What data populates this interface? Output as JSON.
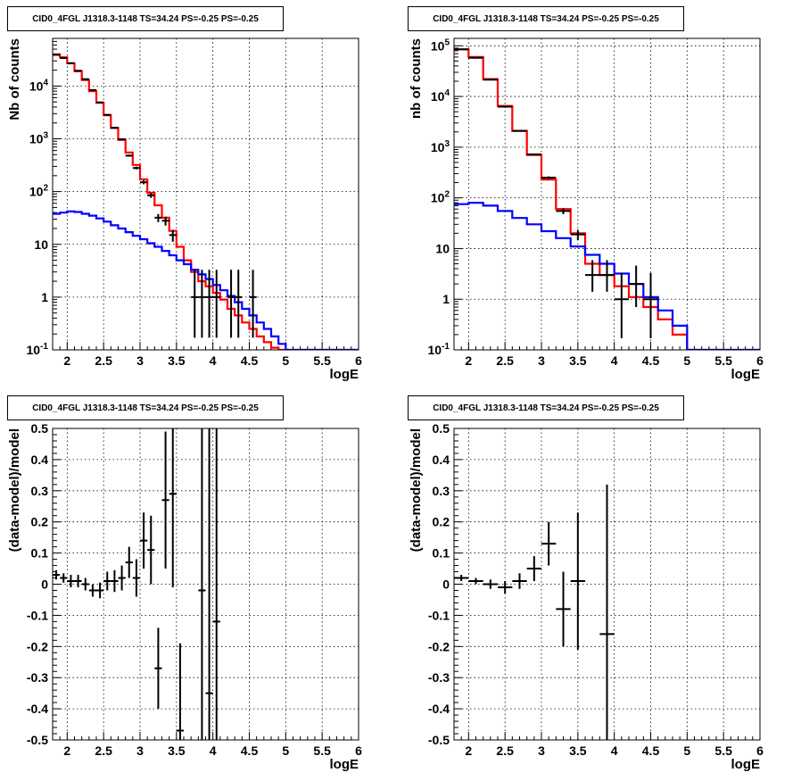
{
  "colors": {
    "data": "#000000",
    "total_model": "#ff0000",
    "component_model": "#0000ff",
    "grid": "#000000"
  },
  "chart_data": [
    {
      "type": "line",
      "title": "CID0_4FGL J1318.3-1148 TS=34.24 PS=-0.25 PS=-0.25",
      "xlabel": "logE",
      "ylabel": "Nb of counts",
      "xlim": [
        1.8,
        6
      ],
      "ylim": [
        0.1,
        80000
      ],
      "yscale": "log",
      "grid": true,
      "xticks": [
        "2",
        "2.5",
        "3",
        "3.5",
        "4",
        "4.5",
        "5",
        "5.5",
        "6"
      ],
      "yticks": [
        "10^{-1}",
        "1",
        "10",
        "10^{2}",
        "10^{3}",
        "10^{4}"
      ],
      "series": [
        {
          "kind": "step",
          "role": "total_model",
          "edges": [
            1.8,
            1.9,
            2.0,
            2.1,
            2.2,
            2.3,
            2.4,
            2.5,
            2.6,
            2.7,
            2.8,
            2.9,
            3.0,
            3.1,
            3.2,
            3.3,
            3.4,
            3.5,
            3.6,
            3.7,
            3.8,
            3.9,
            4.0,
            4.1,
            4.2,
            4.3,
            4.4,
            4.5,
            4.6,
            4.7,
            4.8,
            4.9,
            5.0,
            6.0
          ],
          "values": [
            40000,
            35000,
            27000,
            19000,
            13000,
            8000,
            4800,
            2800,
            1600,
            950,
            550,
            320,
            170,
            95,
            55,
            32,
            18,
            9,
            5,
            3,
            2,
            1.6,
            1.2,
            0.9,
            0.6,
            0.45,
            0.33,
            0.25,
            0.18,
            0.14,
            0.11,
            0.1,
            0.1
          ]
        },
        {
          "kind": "step",
          "role": "component_model",
          "edges": [
            1.8,
            1.9,
            2.0,
            2.1,
            2.2,
            2.3,
            2.4,
            2.5,
            2.6,
            2.7,
            2.8,
            2.9,
            3.0,
            3.1,
            3.2,
            3.3,
            3.4,
            3.5,
            3.6,
            3.7,
            3.8,
            3.9,
            4.0,
            4.1,
            4.2,
            4.3,
            4.4,
            4.5,
            4.6,
            4.7,
            4.8,
            4.9,
            5.0,
            6.0
          ],
          "values": [
            38,
            40,
            42,
            41,
            38,
            35,
            31,
            27,
            23,
            20,
            17,
            14.5,
            12.5,
            10.5,
            9,
            7.5,
            6.2,
            5,
            4.2,
            3.3,
            2.7,
            2.2,
            1.7,
            1.35,
            1.05,
            0.8,
            0.6,
            0.45,
            0.33,
            0.25,
            0.18,
            0.13,
            0.1
          ]
        },
        {
          "kind": "points",
          "role": "data",
          "x": [
            1.85,
            1.95,
            2.05,
            2.15,
            2.25,
            2.35,
            2.45,
            2.55,
            2.65,
            2.75,
            2.85,
            2.95,
            3.05,
            3.15,
            3.25,
            3.35,
            3.45,
            3.75,
            3.85,
            3.95,
            4.05,
            4.25,
            4.35,
            4.55
          ],
          "y": [
            39000,
            34000,
            27000,
            19500,
            13500,
            8400,
            4900,
            2850,
            1620,
            980,
            480,
            280,
            150,
            85,
            32,
            28,
            15,
            1,
            1,
            1,
            1,
            1,
            1,
            1
          ],
          "xerr": 0.05,
          "yerr_low": [
            200,
            180,
            160,
            140,
            120,
            90,
            70,
            53,
            40,
            31,
            22,
            17,
            12,
            9,
            5.6,
            5.3,
            3.8,
            0.83,
            0.83,
            0.83,
            0.83,
            0.83,
            0.83,
            0.83
          ],
          "yerr_high": [
            200,
            180,
            160,
            140,
            120,
            90,
            70,
            53,
            40,
            31,
            22,
            17,
            12,
            9,
            5.6,
            5.3,
            3.8,
            2.3,
            2.3,
            2.3,
            2.3,
            2.3,
            2.3,
            2.3
          ]
        }
      ]
    },
    {
      "type": "line",
      "title": "CID0_4FGL J1318.3-1148 TS=34.24 PS=-0.25 PS=-0.25",
      "xlabel": "logE",
      "ylabel": "nb of counts",
      "xlim": [
        1.8,
        6
      ],
      "ylim": [
        0.1,
        140000
      ],
      "yscale": "log",
      "grid": true,
      "xticks": [
        "2",
        "2.5",
        "3",
        "3.5",
        "4",
        "4.5",
        "5",
        "5.5",
        "6"
      ],
      "yticks": [
        "10^{-1}",
        "1",
        "10",
        "10^{2}",
        "10^{3}",
        "10^{4}",
        "10^{5}"
      ],
      "series": [
        {
          "kind": "step",
          "role": "total_model",
          "edges": [
            1.8,
            2.0,
            2.2,
            2.4,
            2.6,
            2.8,
            3.0,
            3.2,
            3.4,
            3.6,
            3.8,
            4.0,
            4.2,
            4.4,
            4.6,
            4.8,
            5.0,
            6.0
          ],
          "values": [
            85000,
            60000,
            22000,
            6500,
            2100,
            700,
            230,
            60,
            20,
            5,
            3,
            1.8,
            1.1,
            0.7,
            0.4,
            0.2,
            0.1
          ]
        },
        {
          "kind": "step",
          "role": "component_model",
          "edges": [
            1.8,
            2.0,
            2.2,
            2.4,
            2.6,
            2.8,
            3.0,
            3.2,
            3.4,
            3.6,
            3.8,
            4.0,
            4.2,
            4.4,
            4.6,
            4.8,
            5.0,
            6.0
          ],
          "values": [
            75,
            80,
            70,
            55,
            40,
            30,
            22,
            16,
            11,
            7.5,
            5,
            3.2,
            2,
            1.1,
            0.6,
            0.3,
            0.1
          ]
        },
        {
          "kind": "points",
          "role": "data",
          "x": [
            1.9,
            2.1,
            2.3,
            2.5,
            2.7,
            2.9,
            3.1,
            3.3,
            3.5,
            3.7,
            3.9,
            4.1,
            4.3,
            4.5
          ],
          "y": [
            85000,
            58000,
            21500,
            6300,
            2100,
            720,
            250,
            55,
            19,
            3,
            3,
            1,
            2,
            1
          ],
          "xerr": 0.1,
          "yerr_low": [
            290,
            240,
            150,
            80,
            46,
            27,
            16,
            7.4,
            4.4,
            1.6,
            1.6,
            0.83,
            1.3,
            0.83
          ],
          "yerr_high": [
            290,
            240,
            150,
            80,
            46,
            27,
            16,
            7.4,
            4.4,
            2.9,
            2.9,
            2.3,
            2.6,
            2.3
          ]
        }
      ]
    },
    {
      "type": "scatter",
      "title": "CID0_4FGL J1318.3-1148 TS=34.24 PS=-0.25 PS=-0.25",
      "xlabel": "logE",
      "ylabel": "(data-model)/model",
      "xlim": [
        1.8,
        6
      ],
      "ylim": [
        -0.5,
        0.5
      ],
      "grid": true,
      "xticks": [
        "2",
        "2.5",
        "3",
        "3.5",
        "4",
        "4.5",
        "5",
        "5.5",
        "6"
      ],
      "yticks": [
        "-0.5",
        "-0.4",
        "-0.3",
        "-0.2",
        "-0.1",
        "0",
        "0.1",
        "0.2",
        "0.3",
        "0.4",
        "0.5"
      ],
      "series": [
        {
          "kind": "points",
          "role": "data",
          "x": [
            1.85,
            1.95,
            2.05,
            2.15,
            2.25,
            2.35,
            2.45,
            2.55,
            2.65,
            2.75,
            2.85,
            2.95,
            3.05,
            3.15,
            3.25,
            3.35,
            3.45,
            3.55,
            3.85,
            3.95,
            4.05
          ],
          "y": [
            0.03,
            0.02,
            0.01,
            0.01,
            0.0,
            -0.02,
            -0.02,
            0.01,
            0.01,
            0.02,
            0.07,
            0.02,
            0.14,
            0.11,
            -0.27,
            0.27,
            0.29,
            -0.47,
            -0.02,
            -0.35,
            -0.12
          ],
          "xerr": 0.05,
          "yerr": [
            0.015,
            0.015,
            0.02,
            0.02,
            0.02,
            0.02,
            0.025,
            0.03,
            0.035,
            0.04,
            0.05,
            0.06,
            0.09,
            0.11,
            0.13,
            0.22,
            0.3,
            0.28,
            0.9,
            0.9,
            1.0
          ]
        }
      ]
    },
    {
      "type": "scatter",
      "title": "CID0_4FGL J1318.3-1148 TS=34.24 PS=-0.25 PS=-0.25",
      "xlabel": "logE",
      "ylabel": "(data-model)/model",
      "xlim": [
        1.8,
        6
      ],
      "ylim": [
        -0.5,
        0.5
      ],
      "grid": true,
      "xticks": [
        "2",
        "2.5",
        "3",
        "3.5",
        "4",
        "4.5",
        "5",
        "5.5",
        "6"
      ],
      "yticks": [
        "-0.5",
        "-0.4",
        "-0.3",
        "-0.2",
        "-0.1",
        "0",
        "0.1",
        "0.2",
        "0.3",
        "0.4",
        "0.5"
      ],
      "series": [
        {
          "kind": "points",
          "role": "data",
          "x": [
            1.9,
            2.1,
            2.3,
            2.5,
            2.7,
            2.9,
            3.1,
            3.3,
            3.5,
            3.9
          ],
          "y": [
            0.02,
            0.01,
            0.0,
            -0.01,
            0.01,
            0.05,
            0.13,
            -0.08,
            0.01,
            -0.16
          ],
          "xerr": 0.1,
          "yerr": [
            0.01,
            0.01,
            0.015,
            0.02,
            0.025,
            0.04,
            0.07,
            0.12,
            0.22,
            0.48
          ]
        }
      ]
    }
  ]
}
